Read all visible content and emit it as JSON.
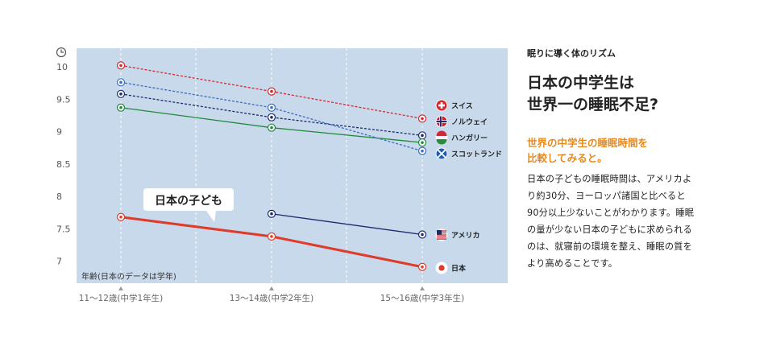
{
  "side_panel": {
    "kicker": "眠りに導く体のリズム",
    "headline": "日本の中学生は\n世界一の睡眠不足?",
    "subhead": "世界の中学生の睡眠時間を\n比較してみると。",
    "body": "日本の子どもの睡眠時間は、アメリカよ\nり約30分、ヨーロッパ諸国と比べると\n90分以上少ないことがわかります。睡眠\nの量が少ない日本の子どもに求められる\nのは、就寝前の環境を整え、睡眠の質を\nより高めることです。"
  },
  "chart_data": {
    "type": "line",
    "y_unit_icon": "clock-icon",
    "xlabel": "年齢(日本のデータは学年)",
    "categories": [
      "11〜12歳(中学1年生)",
      "13〜14歳(中学2年生)",
      "15〜16歳(中学3年生)"
    ],
    "ylim": [
      6.7,
      10.3
    ],
    "yticks": [
      "10",
      "9.5",
      "9",
      "8.5",
      "8",
      "7.5",
      "7"
    ],
    "ytick_values": [
      10,
      9.5,
      9,
      8.5,
      8,
      7.5,
      7
    ],
    "callout": "日本の子ども",
    "series": [
      {
        "name": "スイス",
        "values": [
          10.02,
          9.62,
          9.2
        ],
        "color": "#d7282f",
        "dash": "dot",
        "icon": "swiss-flag-icon"
      },
      {
        "name": "ノルウェイ",
        "values": [
          9.58,
          9.22,
          8.94
        ],
        "color": "#1e2a6e",
        "dash": "dot",
        "icon": "norway-flag-icon"
      },
      {
        "name": "ハンガリー",
        "values": [
          9.37,
          9.06,
          8.83
        ],
        "color": "#1f8a3b",
        "dash": "solid",
        "icon": "hungary-flag-icon"
      },
      {
        "name": "スコットランド",
        "values": [
          9.76,
          9.37,
          8.7
        ],
        "color": "#3a6fc0",
        "dash": "dot",
        "icon": "scotland-flag-icon"
      },
      {
        "name": "アメリカ",
        "values": [
          null,
          7.73,
          7.41
        ],
        "color": "#1e2a6e",
        "dash": "solid",
        "icon": "usa-flag-icon"
      },
      {
        "name": "日本",
        "values": [
          7.68,
          7.38,
          6.91
        ],
        "color": "#e03a2b",
        "dash": "solid",
        "icon": "japan-flag-icon"
      }
    ]
  }
}
